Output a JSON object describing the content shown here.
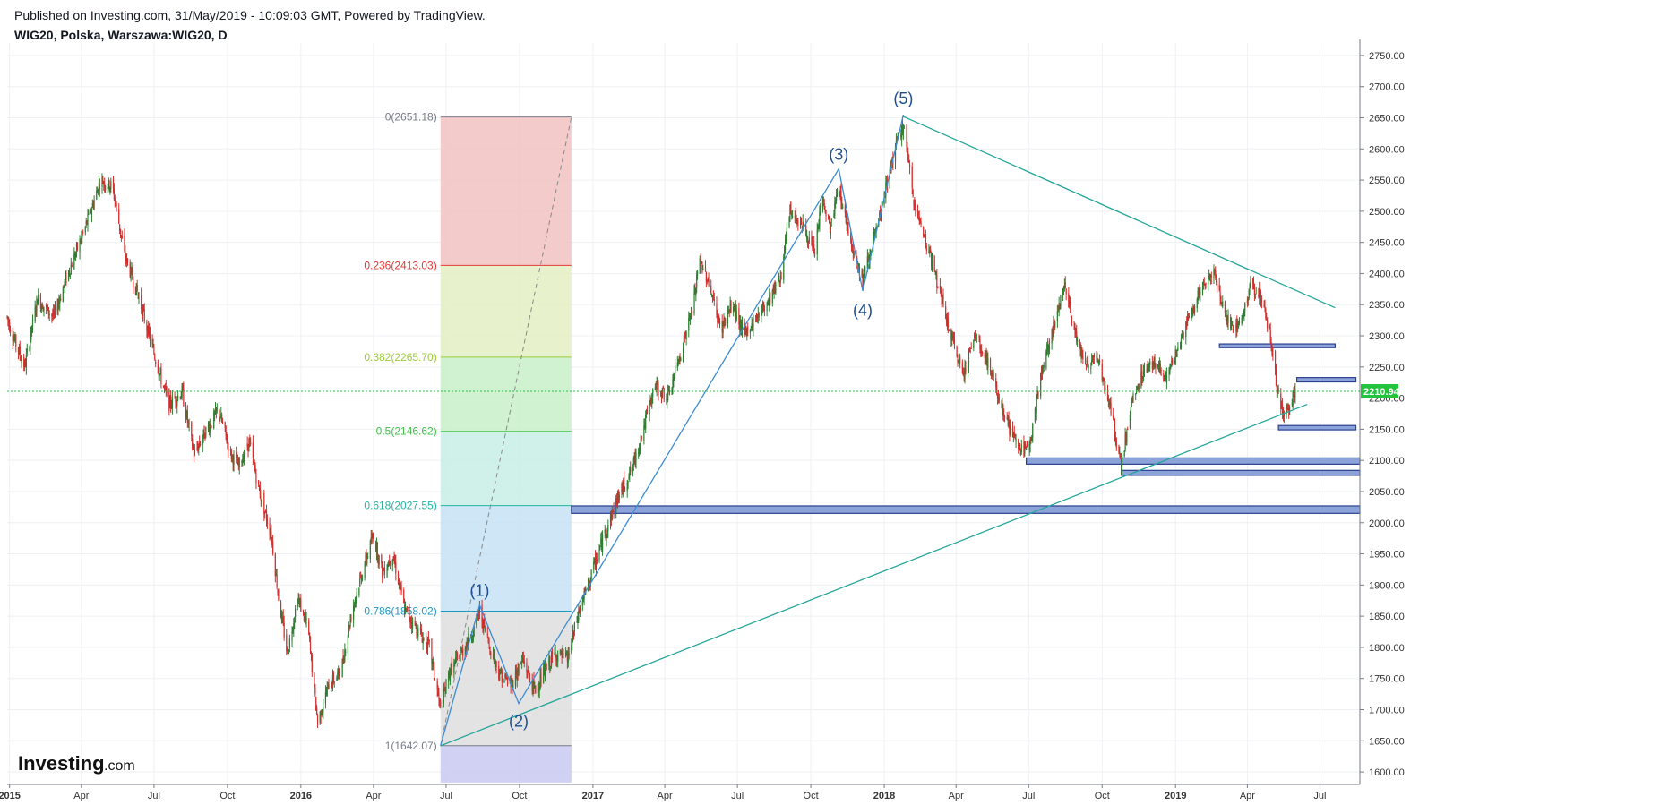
{
  "header": {
    "published": "Published on Investing.com, 31/May/2019 - 10:09:03 GMT, Powered by TradingView.",
    "symbol": "WIG20, Polska, Warszawa:WIG20, D"
  },
  "logo": {
    "main": "Investing",
    "suffix": ".com"
  },
  "colors": {
    "up": "#26a69a",
    "down": "#d32f2f",
    "upCandle": "#2e7d32",
    "trend": "#3d8bd4",
    "channel": "#26a69a",
    "zone": "#8ca3d9",
    "zoneBorder": "#2a3f8f",
    "priceTag": "#22c43e",
    "grid": "#eef0f3",
    "axis": "#787b86"
  },
  "chart_data": {
    "type": "candlestick",
    "timeframe": "D",
    "ylim": [
      1580,
      2770
    ],
    "x_range": [
      "2014-12-29",
      "2019-08-20"
    ],
    "y_ticks": [
      1600,
      1650,
      1700,
      1750,
      1800,
      1850,
      1900,
      1950,
      2000,
      2050,
      2100,
      2150,
      2200,
      2250,
      2300,
      2350,
      2400,
      2450,
      2500,
      2550,
      2600,
      2650,
      2700,
      2750
    ],
    "y_tick_labels": [
      "1600.00",
      "1650.00",
      "1700.00",
      "1750.00",
      "1800.00",
      "1850.00",
      "1900.00",
      "1950.00",
      "2000.00",
      "2050.00",
      "2100.00",
      "2150.00",
      "2200.00",
      "2250.00",
      "2300.00",
      "2350.00",
      "2400.00",
      "2450.00",
      "2500.00",
      "2550.00",
      "2600.00",
      "2650.00",
      "2700.00",
      "2750.00"
    ],
    "x_ticks": [
      {
        "date": "2015-01-01",
        "label": "2015",
        "bold": true
      },
      {
        "date": "2015-04-01",
        "label": "Apr"
      },
      {
        "date": "2015-07-01",
        "label": "Jul"
      },
      {
        "date": "2015-10-01",
        "label": "Oct"
      },
      {
        "date": "2016-01-01",
        "label": "2016",
        "bold": true
      },
      {
        "date": "2016-04-01",
        "label": "Apr"
      },
      {
        "date": "2016-07-01",
        "label": "Jul"
      },
      {
        "date": "2016-10-01",
        "label": "Oct"
      },
      {
        "date": "2017-01-01",
        "label": "2017",
        "bold": true
      },
      {
        "date": "2017-04-01",
        "label": "Apr"
      },
      {
        "date": "2017-07-01",
        "label": "Jul"
      },
      {
        "date": "2017-10-01",
        "label": "Oct"
      },
      {
        "date": "2018-01-01",
        "label": "2018",
        "bold": true
      },
      {
        "date": "2018-04-01",
        "label": "Apr"
      },
      {
        "date": "2018-07-01",
        "label": "Jul"
      },
      {
        "date": "2018-10-01",
        "label": "Oct"
      },
      {
        "date": "2019-01-01",
        "label": "2019",
        "bold": true
      },
      {
        "date": "2019-04-01",
        "label": "Apr"
      },
      {
        "date": "2019-07-01",
        "label": "Jul"
      }
    ],
    "price_path": [
      [
        "2014-12-29",
        2330
      ],
      [
        "2015-01-05",
        2300
      ],
      [
        "2015-01-20",
        2250
      ],
      [
        "2015-02-05",
        2360
      ],
      [
        "2015-02-25",
        2330
      ],
      [
        "2015-03-15",
        2400
      ],
      [
        "2015-04-05",
        2470
      ],
      [
        "2015-04-25",
        2550
      ],
      [
        "2015-05-10",
        2540
      ],
      [
        "2015-05-25",
        2430
      ],
      [
        "2015-06-10",
        2370
      ],
      [
        "2015-06-25",
        2300
      ],
      [
        "2015-07-10",
        2230
      ],
      [
        "2015-07-20",
        2190
      ],
      [
        "2015-08-05",
        2210
      ],
      [
        "2015-08-20",
        2110
      ],
      [
        "2015-09-05",
        2150
      ],
      [
        "2015-09-20",
        2180
      ],
      [
        "2015-10-05",
        2110
      ],
      [
        "2015-10-15",
        2090
      ],
      [
        "2015-10-28",
        2130
      ],
      [
        "2015-11-10",
        2050
      ],
      [
        "2015-11-25",
        1980
      ],
      [
        "2015-12-05",
        1870
      ],
      [
        "2015-12-15",
        1790
      ],
      [
        "2015-12-28",
        1880
      ],
      [
        "2016-01-10",
        1830
      ],
      [
        "2016-01-22",
        1680
      ],
      [
        "2016-02-05",
        1740
      ],
      [
        "2016-02-20",
        1760
      ],
      [
        "2016-03-05",
        1860
      ],
      [
        "2016-03-20",
        1930
      ],
      [
        "2016-04-01",
        1980
      ],
      [
        "2016-04-12",
        1920
      ],
      [
        "2016-04-25",
        1950
      ],
      [
        "2016-05-10",
        1860
      ],
      [
        "2016-05-25",
        1830
      ],
      [
        "2016-06-10",
        1800
      ],
      [
        "2016-06-24",
        1700
      ],
      [
        "2016-07-05",
        1760
      ],
      [
        "2016-07-20",
        1790
      ],
      [
        "2016-08-05",
        1830
      ],
      [
        "2016-08-12",
        1858
      ],
      [
        "2016-08-25",
        1800
      ],
      [
        "2016-09-05",
        1760
      ],
      [
        "2016-09-20",
        1740
      ],
      [
        "2016-10-05",
        1780
      ],
      [
        "2016-10-20",
        1730
      ],
      [
        "2016-11-05",
        1770
      ],
      [
        "2016-11-15",
        1790
      ],
      [
        "2016-11-30",
        1780
      ],
      [
        "2016-12-15",
        1860
      ],
      [
        "2016-12-31",
        1920
      ],
      [
        "2017-01-15",
        1980
      ],
      [
        "2017-02-01",
        2040
      ],
      [
        "2017-02-20",
        2090
      ],
      [
        "2017-03-05",
        2150
      ],
      [
        "2017-03-20",
        2220
      ],
      [
        "2017-04-05",
        2200
      ],
      [
        "2017-04-20",
        2270
      ],
      [
        "2017-05-05",
        2340
      ],
      [
        "2017-05-15",
        2420
      ],
      [
        "2017-05-25",
        2390
      ],
      [
        "2017-06-10",
        2310
      ],
      [
        "2017-06-25",
        2350
      ],
      [
        "2017-07-10",
        2300
      ],
      [
        "2017-07-25",
        2330
      ],
      [
        "2017-08-10",
        2360
      ],
      [
        "2017-08-25",
        2400
      ],
      [
        "2017-09-05",
        2500
      ],
      [
        "2017-09-20",
        2480
      ],
      [
        "2017-10-05",
        2430
      ],
      [
        "2017-10-15",
        2520
      ],
      [
        "2017-10-25",
        2470
      ],
      [
        "2017-11-05",
        2540
      ],
      [
        "2017-11-15",
        2480
      ],
      [
        "2017-11-25",
        2430
      ],
      [
        "2017-12-05",
        2390
      ],
      [
        "2017-12-15",
        2440
      ],
      [
        "2017-12-25",
        2480
      ],
      [
        "2018-01-05",
        2550
      ],
      [
        "2018-01-15",
        2600
      ],
      [
        "2018-01-25",
        2640
      ],
      [
        "2018-02-05",
        2530
      ],
      [
        "2018-02-15",
        2480
      ],
      [
        "2018-02-25",
        2440
      ],
      [
        "2018-03-10",
        2380
      ],
      [
        "2018-03-25",
        2300
      ],
      [
        "2018-04-10",
        2240
      ],
      [
        "2018-04-25",
        2300
      ],
      [
        "2018-05-10",
        2260
      ],
      [
        "2018-05-25",
        2200
      ],
      [
        "2018-06-10",
        2140
      ],
      [
        "2018-06-25",
        2110
      ],
      [
        "2018-07-05",
        2150
      ],
      [
        "2018-07-20",
        2260
      ],
      [
        "2018-08-05",
        2330
      ],
      [
        "2018-08-15",
        2390
      ],
      [
        "2018-08-25",
        2320
      ],
      [
        "2018-09-10",
        2250
      ],
      [
        "2018-09-25",
        2270
      ],
      [
        "2018-10-10",
        2190
      ],
      [
        "2018-10-25",
        2090
      ],
      [
        "2018-11-05",
        2180
      ],
      [
        "2018-11-20",
        2240
      ],
      [
        "2018-12-05",
        2260
      ],
      [
        "2018-12-20",
        2230
      ],
      [
        "2019-01-05",
        2280
      ],
      [
        "2019-01-20",
        2340
      ],
      [
        "2019-02-05",
        2380
      ],
      [
        "2019-02-20",
        2400
      ],
      [
        "2019-03-05",
        2330
      ],
      [
        "2019-03-20",
        2310
      ],
      [
        "2019-04-05",
        2380
      ],
      [
        "2019-04-20",
        2360
      ],
      [
        "2019-05-01",
        2290
      ],
      [
        "2019-05-08",
        2220
      ],
      [
        "2019-05-15",
        2170
      ],
      [
        "2019-05-22",
        2185
      ],
      [
        "2019-05-31",
        2210.94
      ]
    ],
    "last_price": 2210.94,
    "last_price_label": "2210.94",
    "fibonacci": {
      "x_start": "2016-06-24",
      "x_end": "2016-12-05",
      "levels": [
        {
          "ratio": "0",
          "value": 2651.18,
          "label": "0(2651.18)",
          "color": "#787b86",
          "fill": "#f1c2c2"
        },
        {
          "ratio": "0.236",
          "value": 2413.03,
          "label": "0.236(2413.03)",
          "color": "#e53935",
          "fill": "#e3efc2"
        },
        {
          "ratio": "0.382",
          "value": 2265.7,
          "label": "0.382(2265.70)",
          "color": "#9ccc3a",
          "fill": "#c8f0c8"
        },
        {
          "ratio": "0.5",
          "value": 2146.62,
          "label": "0.5(2146.62)",
          "color": "#43c04a",
          "fill": "#c8efe6"
        },
        {
          "ratio": "0.618",
          "value": 2027.55,
          "label": "0.618(2027.55)",
          "color": "#26b5a0",
          "fill": "#c6e2f3"
        },
        {
          "ratio": "0.786",
          "value": 1858.02,
          "label": "0.786(1858.02)",
          "color": "#2196c3",
          "fill": "#dedede"
        },
        {
          "ratio": "1",
          "value": 1642.07,
          "label": "1(1642.07)",
          "color": "#787b86",
          "fill": "#c9c9f2"
        }
      ],
      "bottom_fill_to": 1583
    },
    "wave_labels": [
      {
        "label": "(1)",
        "date": "2016-08-12",
        "value": 1865,
        "pos": "above"
      },
      {
        "label": "(2)",
        "date": "2016-09-30",
        "value": 1710,
        "pos": "below"
      },
      {
        "label": "(3)",
        "date": "2017-11-05",
        "value": 2565,
        "pos": "above"
      },
      {
        "label": "(4)",
        "date": "2017-12-05",
        "value": 2370,
        "pos": "below"
      },
      {
        "label": "(5)",
        "date": "2018-01-25",
        "value": 2655,
        "pos": "above"
      }
    ],
    "wave_path": [
      [
        "2016-06-24",
        1642
      ],
      [
        "2016-08-12",
        1868
      ],
      [
        "2016-09-30",
        1710
      ],
      [
        "2017-11-05",
        2568
      ],
      [
        "2017-12-05",
        2372
      ],
      [
        "2018-01-25",
        2655
      ]
    ],
    "fib_diagonal": [
      [
        "2016-06-24",
        1642.07
      ],
      [
        "2016-12-05",
        2651.18
      ]
    ],
    "trendlines": [
      [
        [
          "2018-01-25",
          2652
        ],
        [
          "2019-07-20",
          2345
        ]
      ],
      [
        [
          "2016-06-24",
          1642
        ],
        [
          "2019-06-15",
          2190
        ]
      ]
    ],
    "zones": [
      {
        "from": "2016-12-05",
        "to": "2019-08-20",
        "top": 2027,
        "bottom": 2015
      },
      {
        "from": "2018-06-28",
        "to": "2019-08-20",
        "top": 2104,
        "bottom": 2094
      },
      {
        "from": "2018-10-25",
        "to": "2019-08-20",
        "top": 2084,
        "bottom": 2076
      },
      {
        "from": "2019-02-25",
        "to": "2019-07-20",
        "top": 2287,
        "bottom": 2281
      },
      {
        "from": "2019-06-02",
        "to": "2019-08-15",
        "top": 2233,
        "bottom": 2226
      },
      {
        "from": "2019-05-10",
        "to": "2019-08-15",
        "top": 2156,
        "bottom": 2149
      }
    ]
  }
}
